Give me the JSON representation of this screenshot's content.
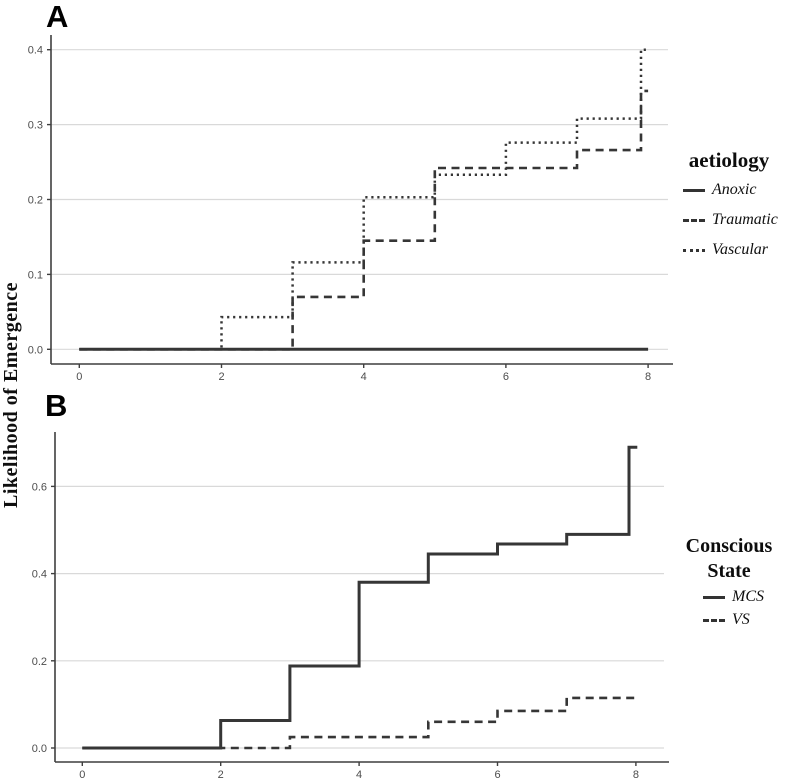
{
  "figure": {
    "y_axis_label": "Likelihood of Emergence",
    "colors": {
      "line": "#363636",
      "grid": "#d9d9d9",
      "axis": "#3f3f3f",
      "tick_label": "#4d4d4d"
    }
  },
  "panelA": {
    "letter": "A",
    "legend": {
      "title": "aetiology",
      "items": [
        {
          "label": "Anoxic",
          "line_style": "solid"
        },
        {
          "label": "Traumatic",
          "line_style": "dashed"
        },
        {
          "label": "Vascular",
          "line_style": "dotted"
        }
      ]
    }
  },
  "panelB": {
    "letter": "B",
    "legend": {
      "title_line1": "Conscious",
      "title_line2": "State",
      "items": [
        {
          "label": "MCS",
          "line_style": "solid"
        },
        {
          "label": "VS",
          "line_style": "dashed"
        }
      ]
    }
  },
  "chart_data": [
    {
      "panel": "A",
      "type": "line",
      "subtype": "step",
      "step_mode": "post",
      "title": "",
      "xlabel": "",
      "ylabel": "Likelihood of Emergence",
      "xlim": [
        0,
        8.05
      ],
      "ylim": [
        0,
        0.42
      ],
      "grid": "horizontal-major-only",
      "legend_title": "aetiology",
      "legend_position": "right",
      "xticks": {
        "values": [
          0,
          2,
          4,
          6,
          8
        ],
        "labels": [
          "0",
          "2",
          "4",
          "6",
          "8"
        ]
      },
      "yticks": {
        "values": [
          0,
          0.1,
          0.2,
          0.3,
          0.4
        ],
        "labels": [
          "0.0",
          "0.1",
          "0.2",
          "0.3",
          "0.4"
        ]
      },
      "x_end": 8.0,
      "series": [
        {
          "name": "Anoxic",
          "line_style": "solid",
          "steps": [
            [
              0,
              0
            ]
          ]
        },
        {
          "name": "Traumatic",
          "line_style": "dashed",
          "steps": [
            [
              0,
              0
            ],
            [
              3,
              0.07
            ],
            [
              4,
              0.145
            ],
            [
              5,
              0.242
            ],
            [
              7,
              0.266
            ],
            [
              7.9,
              0.345
            ]
          ]
        },
        {
          "name": "Vascular",
          "line_style": "dotted",
          "steps": [
            [
              0,
              0
            ],
            [
              2,
              0.043
            ],
            [
              3,
              0.116
            ],
            [
              4,
              0.203
            ],
            [
              5,
              0.233
            ],
            [
              6,
              0.276
            ],
            [
              7,
              0.308
            ],
            [
              7.9,
              0.4
            ]
          ]
        }
      ]
    },
    {
      "panel": "B",
      "type": "line",
      "subtype": "step",
      "step_mode": "post",
      "title": "",
      "xlabel": "",
      "ylabel": "Likelihood of Emergence",
      "xlim": [
        0,
        8.05
      ],
      "ylim": [
        0,
        0.72
      ],
      "grid": "horizontal-major-only",
      "legend_title": "Conscious State",
      "legend_position": "right",
      "xticks": {
        "values": [
          0,
          2,
          4,
          6,
          8
        ],
        "labels": [
          "0",
          "2",
          "4",
          "6",
          "8"
        ]
      },
      "yticks": {
        "values": [
          0,
          0.2,
          0.4,
          0.6
        ],
        "labels": [
          "0.0",
          "0.2",
          "0.4",
          "0.6"
        ]
      },
      "x_end": 8.02,
      "series": [
        {
          "name": "MCS",
          "line_style": "solid",
          "steps": [
            [
              0,
              0
            ],
            [
              2,
              0.063
            ],
            [
              3,
              0.188
            ],
            [
              4,
              0.38
            ],
            [
              5,
              0.445
            ],
            [
              6,
              0.468
            ],
            [
              7,
              0.49
            ],
            [
              7.9,
              0.69
            ]
          ]
        },
        {
          "name": "VS",
          "line_style": "dashed",
          "steps": [
            [
              0,
              0
            ],
            [
              3,
              0.025
            ],
            [
              5,
              0.06
            ],
            [
              6,
              0.085
            ],
            [
              7,
              0.115
            ]
          ]
        }
      ]
    }
  ]
}
